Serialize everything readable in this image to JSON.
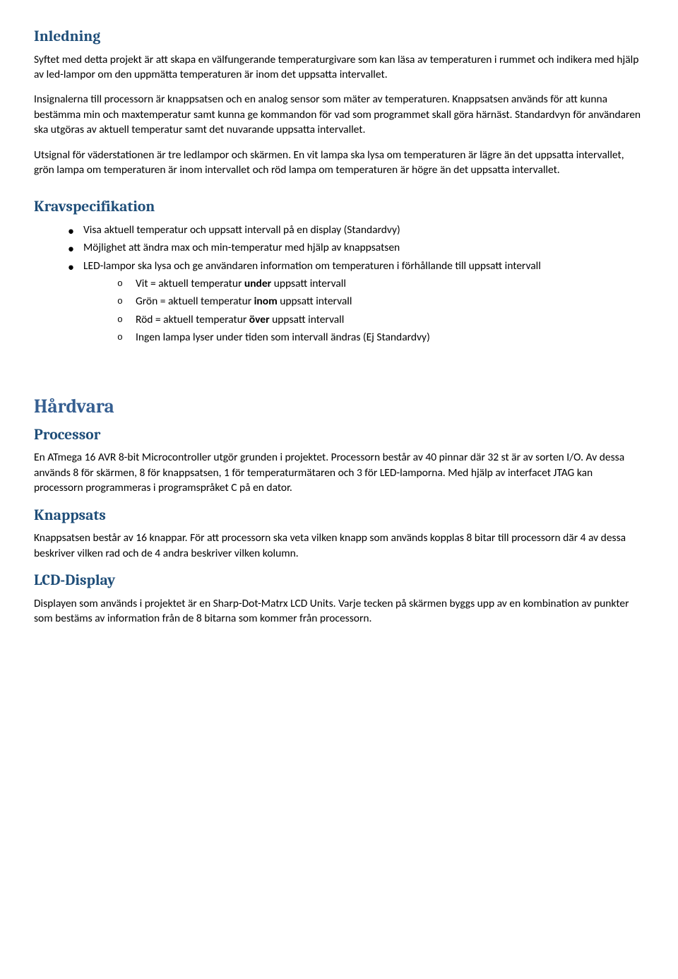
{
  "headings": {
    "inledning": "Inledning",
    "krav": "Kravspecifikation",
    "hardvara": "Hårdvara",
    "processor": "Processor",
    "knappsats": "Knappsats",
    "lcd": "LCD-Display"
  },
  "inledning": {
    "p1": "Syftet med detta projekt är att skapa en välfungerande temperaturgivare som kan läsa av temperaturen i rummet och indikera med hjälp av led-lampor om den uppmätta temperaturen är inom det uppsatta intervallet.",
    "p2": "Insignalerna till processorn är knappsatsen och en analog sensor som mäter av temperaturen. Knappsatsen används för att kunna bestämma min och maxtemperatur samt kunna ge kommandon för vad som programmet skall göra härnäst. Standardvyn för användaren ska utgöras av aktuell temperatur samt det nuvarande uppsatta intervallet.",
    "p3": " Utsignal för väderstationen är tre ledlampor och skärmen.  En vit lampa ska lysa om temperaturen är lägre än det uppsatta intervallet, grön lampa om temperaturen är inom intervallet och röd lampa om temperaturen är högre än det uppsatta intervallet."
  },
  "krav": {
    "items": [
      "Visa aktuell temperatur och uppsatt intervall på en display (Standardvy)",
      "Möjlighet att ändra max och min-temperatur med hjälp av knappsatsen",
      "LED-lampor ska lysa och ge användaren information om temperaturen i förhållande till uppsatt intervall"
    ],
    "sub": {
      "vit_pre": "Vit = aktuell temperatur ",
      "vit_bold": "under",
      "vit_post": " uppsatt intervall",
      "gron_pre": "Grön = aktuell temperatur ",
      "gron_bold": "inom",
      "gron_post": " uppsatt intervall",
      "rod_pre": "Röd = aktuell temperatur ",
      "rod_bold": "över",
      "rod_post": " uppsatt intervall",
      "ingen": "Ingen lampa lyser under tiden som intervall ändras (Ej Standardvy)"
    }
  },
  "processor": {
    "p1": "En ATmega 16 AVR 8-bit Microcontroller utgör grunden i projektet. Processorn består av 40 pinnar där 32 st är av sorten I/O. Av dessa används 8 för skärmen, 8 för knappsatsen, 1 för temperaturmätaren och 3 för LED-lamporna. Med hjälp av interfacet JTAG kan processorn programmeras i programspråket C på en dator."
  },
  "knappsats": {
    "p1": "Knappsatsen består av 16 knappar. För att processorn ska veta vilken knapp som används kopplas 8 bitar till processorn där 4 av dessa beskriver vilken rad och de 4 andra beskriver vilken kolumn."
  },
  "lcd": {
    "p1": "Displayen som används i projektet är en Sharp-Dot-Matrx LCD Units. Varje tecken på skärmen byggs upp av en kombination av punkter som bestäms av information från de 8 bitarna som kommer från processorn."
  },
  "colors": {
    "heading_h2": "#1f4e79",
    "heading_h1": "#365f91",
    "body_text": "#000000",
    "background": "#ffffff"
  },
  "fonts": {
    "body_family": "Calibri",
    "heading_family": "Cambria",
    "body_size_pt": 11.5,
    "h2_size_pt": 16,
    "h1_size_pt": 20
  }
}
